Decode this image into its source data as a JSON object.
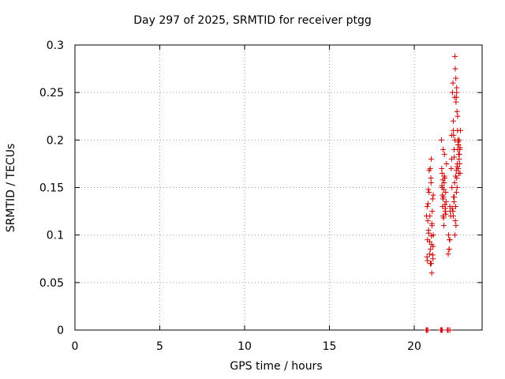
{
  "chart_data": {
    "type": "scatter",
    "title": "Day 297 of 2025, SRMTID for receiver ptgg",
    "xlabel": "GPS time / hours",
    "ylabel": "SRMTID / TECUs",
    "xlim": [
      0,
      24
    ],
    "ylim": [
      0,
      0.3
    ],
    "xticks": [
      "0",
      "5",
      "10",
      "15",
      "20"
    ],
    "yticks": [
      "0",
      "0.05",
      "0.1",
      "0.15",
      "0.2",
      "0.25",
      "0.3"
    ],
    "grid": true,
    "marker": "+",
    "color": "#cc0000",
    "series": [
      {
        "x": [
          20.75,
          20.78,
          20.8,
          20.82,
          20.85,
          20.87,
          20.9,
          20.92,
          20.95,
          20.98,
          21.0,
          21.02,
          21.05,
          21.08,
          21.1,
          21.12,
          20.72,
          20.88,
          21.03,
          21.0,
          20.95,
          20.84,
          21.06,
          21.12,
          20.78,
          20.91,
          21.04,
          20.99,
          21.11,
          20.76,
          20.83,
          21.09,
          20.94,
          21.01,
          21.6,
          21.62,
          21.65,
          21.67,
          21.7,
          21.72,
          21.75,
          21.78,
          21.8,
          21.82,
          21.85,
          21.88,
          21.9,
          21.64,
          21.7,
          21.76,
          21.84,
          21.66,
          21.73,
          21.81,
          21.69,
          21.77,
          21.63,
          21.86,
          21.74,
          21.68,
          22.0,
          22.02,
          22.05,
          22.08,
          22.1,
          22.12,
          22.15,
          22.18,
          22.2,
          22.22,
          22.25,
          22.28,
          22.3,
          22.32,
          22.35,
          22.38,
          22.4,
          22.42,
          22.45,
          22.48,
          22.5,
          22.52,
          22.55,
          22.58,
          22.6,
          22.62,
          22.65,
          22.68,
          22.7,
          22.72,
          22.2,
          22.3,
          22.4,
          22.5,
          22.36,
          22.44,
          22.52,
          22.6,
          22.28,
          22.46,
          22.56,
          22.34,
          22.62,
          22.48,
          22.38,
          22.66,
          22.24,
          22.54,
          22.42,
          22.58,
          22.32,
          22.5,
          22.64,
          22.46,
          22.4,
          22.56,
          22.68,
          22.36,
          22.52,
          22.44,
          22.6,
          22.3,
          22.7,
          22.48,
          22.06,
          22.1,
          20.7,
          20.74,
          20.8,
          21.55,
          21.6,
          21.65,
          21.95,
          22.0,
          22.1
        ],
        "y": [
          0.077,
          0.095,
          0.115,
          0.133,
          0.102,
          0.145,
          0.08,
          0.12,
          0.07,
          0.16,
          0.18,
          0.09,
          0.11,
          0.138,
          0.075,
          0.1,
          0.12,
          0.168,
          0.06,
          0.07,
          0.085,
          0.105,
          0.125,
          0.142,
          0.073,
          0.093,
          0.112,
          0.155,
          0.088,
          0.13,
          0.148,
          0.079,
          0.17,
          0.099,
          0.2,
          0.17,
          0.15,
          0.13,
          0.12,
          0.14,
          0.11,
          0.185,
          0.16,
          0.125,
          0.145,
          0.135,
          0.175,
          0.165,
          0.19,
          0.155,
          0.128,
          0.142,
          0.118,
          0.132,
          0.138,
          0.162,
          0.152,
          0.122,
          0.148,
          0.158,
          0.08,
          0.1,
          0.085,
          0.095,
          0.13,
          0.125,
          0.12,
          0.17,
          0.205,
          0.15,
          0.25,
          0.26,
          0.22,
          0.14,
          0.19,
          0.245,
          0.288,
          0.275,
          0.265,
          0.245,
          0.255,
          0.23,
          0.21,
          0.2,
          0.195,
          0.185,
          0.2,
          0.175,
          0.165,
          0.21,
          0.18,
          0.12,
          0.1,
          0.16,
          0.14,
          0.13,
          0.15,
          0.17,
          0.125,
          0.11,
          0.19,
          0.135,
          0.165,
          0.145,
          0.155,
          0.185,
          0.128,
          0.175,
          0.115,
          0.195,
          0.205,
          0.25,
          0.18,
          0.24,
          0.2,
          0.225,
          0.19,
          0.182,
          0.172,
          0.162,
          0.198,
          0.21,
          0.192,
          0.168,
          0.085,
          0.095,
          0,
          0,
          0,
          0,
          0,
          0,
          0,
          0,
          0
        ]
      }
    ]
  }
}
